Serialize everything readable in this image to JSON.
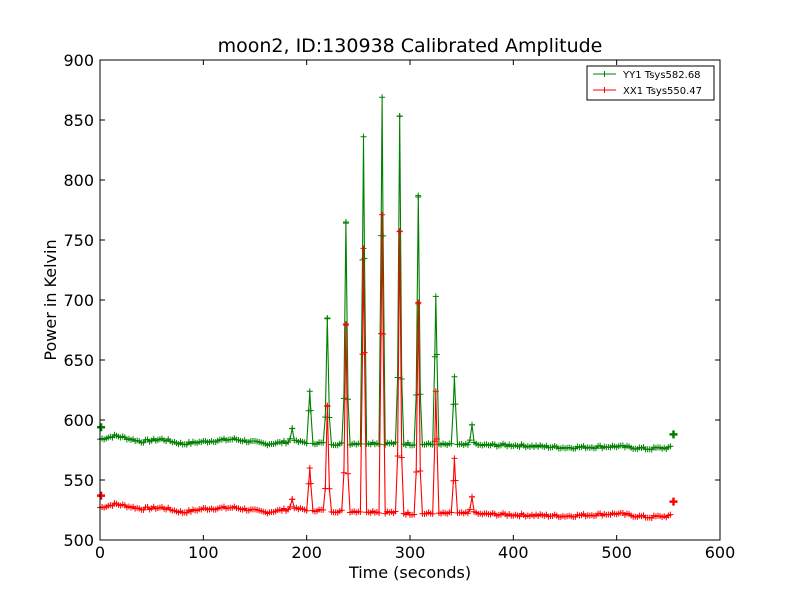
{
  "chart_data": {
    "type": "line",
    "title": "moon2, ID:130938 Calibrated Amplitude",
    "xlabel": "Time (seconds)",
    "ylabel": "Power in Kelvin",
    "xlim": [
      0,
      600
    ],
    "ylim": [
      500,
      900
    ],
    "xticks": [
      0,
      100,
      200,
      300,
      400,
      500,
      600
    ],
    "yticks": [
      500,
      550,
      600,
      650,
      700,
      750,
      800,
      850,
      900
    ],
    "xtick_labels": [
      "0",
      "100",
      "200",
      "300",
      "400",
      "500",
      "600"
    ],
    "ytick_labels": [
      "500",
      "550",
      "600",
      "650",
      "700",
      "750",
      "800",
      "850",
      "900"
    ],
    "grid": false,
    "legend_position": "top-right",
    "marker": "+",
    "series": [
      {
        "name": "YY1 Tsys582.68",
        "color": "#008000",
        "baseline": [
          [
            0,
            584
          ],
          [
            15,
            587
          ],
          [
            40,
            582
          ],
          [
            60,
            584
          ],
          [
            80,
            580
          ],
          [
            100,
            582
          ],
          [
            130,
            584
          ],
          [
            160,
            580
          ],
          [
            185,
            582
          ],
          [
            230,
            580
          ],
          [
            260,
            581
          ],
          [
            300,
            580
          ],
          [
            350,
            579
          ],
          [
            400,
            579
          ],
          [
            450,
            577
          ],
          [
            500,
            578
          ],
          [
            530,
            576
          ],
          [
            553,
            577
          ]
        ],
        "peaks": [
          [
            186,
            593
          ],
          [
            203,
            624
          ],
          [
            220,
            685
          ],
          [
            238,
            765
          ],
          [
            255,
            836
          ],
          [
            273,
            869
          ],
          [
            290,
            853
          ],
          [
            308,
            787
          ],
          [
            325,
            703
          ],
          [
            343,
            636
          ],
          [
            360,
            596
          ]
        ],
        "peak_width": 2.5,
        "start_point": [
          1,
          594
        ],
        "end_point": [
          555,
          588
        ]
      },
      {
        "name": "XX1 Tsys550.47",
        "color": "#ff0000",
        "baseline": [
          [
            0,
            527
          ],
          [
            15,
            530
          ],
          [
            40,
            526
          ],
          [
            60,
            527
          ],
          [
            80,
            523
          ],
          [
            100,
            526
          ],
          [
            130,
            527
          ],
          [
            160,
            523
          ],
          [
            185,
            526
          ],
          [
            230,
            524
          ],
          [
            260,
            524
          ],
          [
            300,
            522
          ],
          [
            350,
            522
          ],
          [
            400,
            521
          ],
          [
            450,
            520
          ],
          [
            500,
            522
          ],
          [
            530,
            519
          ],
          [
            553,
            520
          ]
        ],
        "peaks": [
          [
            186,
            534
          ],
          [
            203,
            560
          ],
          [
            220,
            612
          ],
          [
            238,
            680
          ],
          [
            255,
            743
          ],
          [
            273,
            771
          ],
          [
            290,
            757
          ],
          [
            308,
            698
          ],
          [
            325,
            624
          ],
          [
            343,
            568
          ],
          [
            360,
            536
          ]
        ],
        "peak_width": 2.5,
        "start_point": [
          1,
          537
        ],
        "end_point": [
          555,
          532
        ]
      }
    ]
  }
}
